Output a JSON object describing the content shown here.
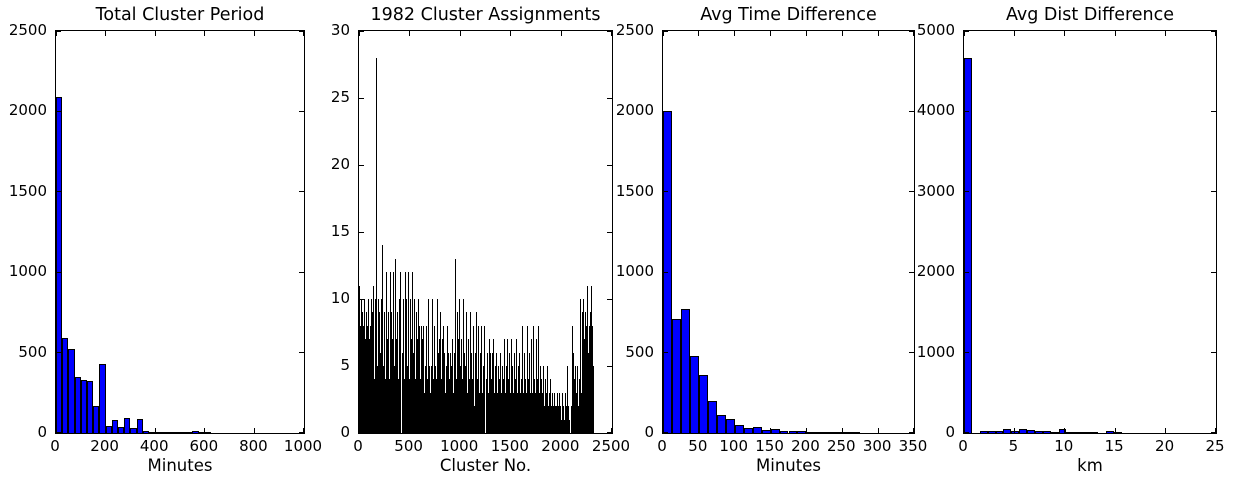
{
  "figure": {
    "background": "#ffffff",
    "spine_color": "#000000",
    "text_color": "#000000"
  },
  "chart_data": [
    {
      "type": "bar",
      "title": "Total Cluster Period",
      "xlabel": "Minutes",
      "bar_color": "#0000ff",
      "bar_edge": "#000000",
      "xlim": [
        0,
        1000
      ],
      "ylim": [
        0,
        2500
      ],
      "xticks": [
        0,
        200,
        400,
        600,
        800,
        1000
      ],
      "yticks": [
        0,
        500,
        1000,
        1500,
        2000,
        2500
      ],
      "bin_start": 0,
      "bin_width": 25,
      "values": [
        2090,
        590,
        525,
        350,
        330,
        325,
        165,
        430,
        45,
        80,
        35,
        95,
        30,
        85,
        12,
        8,
        8,
        5,
        3,
        2,
        1,
        1,
        15,
        5,
        1,
        0,
        0,
        0,
        0,
        0,
        0,
        0,
        0,
        0,
        0,
        0,
        0,
        0,
        0,
        0
      ]
    },
    {
      "type": "bar",
      "title": "1982 Cluster Assignments",
      "xlabel": "Cluster No.",
      "bar_color": "#000000",
      "bar_edge": "#000000",
      "xlim": [
        0,
        2500
      ],
      "ylim": [
        0,
        30
      ],
      "xticks": [
        0,
        500,
        1000,
        1500,
        2000,
        2500
      ],
      "yticks": [
        0,
        5,
        10,
        15,
        20,
        25,
        30
      ],
      "bin_start": 0,
      "bin_width": 10,
      "values": [
        11,
        8,
        10,
        9,
        8,
        10,
        7,
        9,
        8,
        10,
        7,
        8,
        10,
        9,
        11,
        4,
        10,
        28,
        5,
        10,
        9,
        6,
        10,
        14,
        5,
        9,
        4,
        12,
        7,
        9,
        4,
        12,
        9,
        7,
        12,
        5,
        13,
        7,
        9,
        4,
        10,
        12,
        6,
        10,
        4,
        12,
        10,
        5,
        12,
        4,
        10,
        7,
        12,
        6,
        10,
        4,
        9,
        7,
        10,
        8,
        4,
        8,
        7,
        8,
        3,
        5,
        8,
        4,
        10,
        5,
        3,
        5,
        10,
        4,
        8,
        5,
        4,
        10,
        6,
        7,
        9,
        4,
        7,
        8,
        6,
        3,
        5,
        8,
        6,
        4,
        6,
        5,
        7,
        3,
        6,
        13,
        4,
        9,
        7,
        10,
        5,
        7,
        4,
        10,
        6,
        5,
        9,
        3,
        7,
        4,
        9,
        6,
        4,
        8,
        2,
        6,
        9,
        4,
        8,
        3,
        6,
        8,
        3,
        5,
        8,
        4,
        6,
        3,
        7,
        6,
        4,
        6,
        7,
        3,
        5,
        6,
        3,
        5,
        4,
        6,
        3,
        5,
        4,
        7,
        3,
        5,
        7,
        4,
        6,
        3,
        7,
        5,
        3,
        6,
        4,
        7,
        3,
        5,
        6,
        3,
        4,
        8,
        3,
        6,
        4,
        3,
        8,
        4,
        6,
        3,
        7,
        3,
        8,
        4,
        3,
        7,
        4,
        8,
        3,
        5,
        4,
        3,
        5,
        2,
        4,
        3,
        5,
        2,
        3,
        4,
        2,
        3,
        2,
        3,
        2,
        2,
        3,
        2,
        3,
        2,
        1,
        3,
        2,
        1,
        3,
        2,
        5,
        2,
        1,
        2,
        8,
        6,
        4,
        5,
        3,
        5,
        2,
        4,
        10,
        3,
        9,
        10,
        7,
        9,
        8,
        11,
        6,
        8,
        9,
        11,
        8,
        5
      ]
    },
    {
      "type": "bar",
      "title": "Avg Time Difference",
      "xlabel": "Minutes",
      "bar_color": "#0000ff",
      "bar_edge": "#000000",
      "xlim": [
        0,
        350
      ],
      "ylim": [
        0,
        2500
      ],
      "xticks": [
        0,
        50,
        100,
        150,
        200,
        250,
        300,
        350
      ],
      "yticks": [
        0,
        500,
        1000,
        1500,
        2000,
        2500
      ],
      "bin_start": 0,
      "bin_width": 12.5,
      "values": [
        2000,
        710,
        770,
        480,
        360,
        200,
        110,
        90,
        50,
        33,
        38,
        20,
        28,
        12,
        10,
        12,
        6,
        3,
        6,
        2,
        1,
        1,
        0,
        0,
        0,
        0,
        0,
        0
      ]
    },
    {
      "type": "bar",
      "title": "Avg Dist Difference",
      "xlabel": "km",
      "bar_color": "#0000ff",
      "bar_edge": "#000000",
      "xlim": [
        0,
        25
      ],
      "ylim": [
        0,
        5000
      ],
      "xticks": [
        0,
        5,
        10,
        15,
        20,
        25
      ],
      "yticks": [
        0,
        1000,
        2000,
        3000,
        4000,
        5000
      ],
      "bin_start": 0,
      "bin_width": 0.78125,
      "values": [
        4660,
        0,
        20,
        25,
        30,
        45,
        30,
        55,
        35,
        30,
        25,
        5,
        45,
        10,
        12,
        12,
        10,
        0,
        25,
        5,
        0,
        0,
        0,
        0,
        0,
        0,
        0,
        0,
        0,
        0,
        0,
        0
      ]
    }
  ]
}
